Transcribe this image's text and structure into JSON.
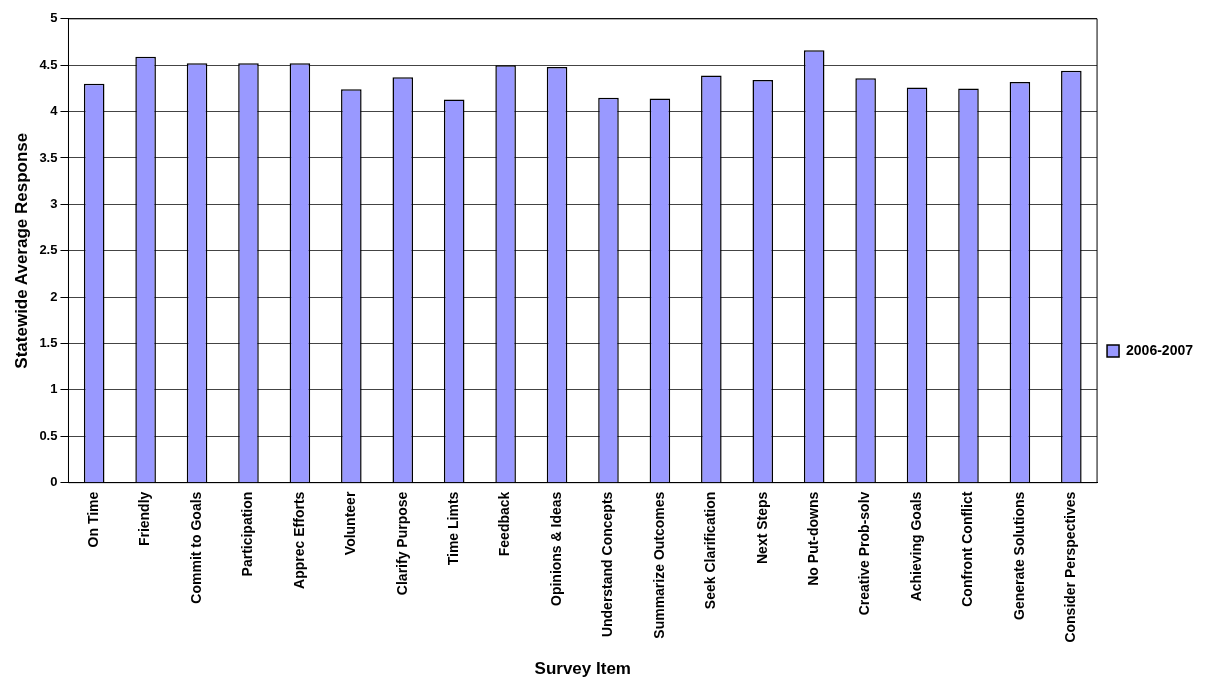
{
  "chart_data": {
    "type": "bar",
    "xlabel": "Survey Item",
    "ylabel": "Statewide Average Response",
    "categories": [
      "On Time",
      "Friendly",
      "Commit to Goals",
      "Participation",
      "Apprec Efforts",
      "Volunteer",
      "Clarify Purpose",
      "Time Limts",
      "Feedback",
      "Opinions & Ideas",
      "Understand Concepts",
      "Summarize Outcomes",
      "Seek Clarification",
      "Next Steps",
      "No Put-downs",
      "Creative Prob-solv",
      "Achieving Goals",
      "Confront Conflict",
      "Generate Solutions",
      "Consider Perspectives"
    ],
    "series": [
      {
        "name": "2006-2007",
        "color": "#9999ff",
        "values": [
          4.3,
          4.59,
          4.52,
          4.52,
          4.52,
          4.24,
          4.37,
          4.13,
          4.5,
          4.48,
          4.15,
          4.14,
          4.39,
          4.34,
          4.66,
          4.36,
          4.26,
          4.25,
          4.32,
          4.44
        ]
      }
    ],
    "ylim": [
      0,
      5
    ],
    "yticks": [
      0,
      0.5,
      1,
      1.5,
      2,
      2.5,
      3,
      3.5,
      4,
      4.5,
      5
    ],
    "grid": "y",
    "legend": "right"
  }
}
